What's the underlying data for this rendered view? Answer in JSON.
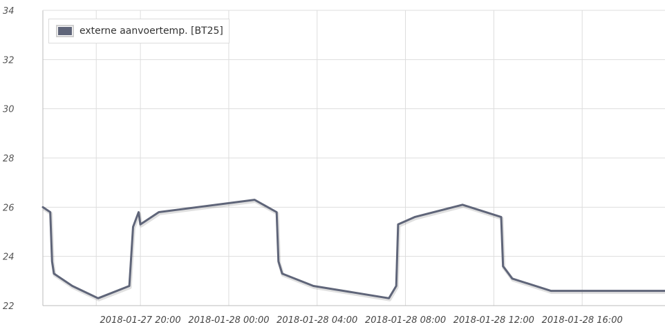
{
  "colors": {
    "series": "#5f6579",
    "grid": "#dddddd",
    "axis": "#bbbbbb"
  },
  "chart_data": {
    "type": "line",
    "title": "",
    "xlabel": "",
    "ylabel": "",
    "ylim": [
      22,
      34
    ],
    "xlim": [
      "2018-01-27 15:35",
      "2018-01-28 19:45"
    ],
    "grid": true,
    "legend_position": "top-left",
    "yticks": [
      "22",
      "24",
      "26",
      "28",
      "30",
      "32",
      "34"
    ],
    "xticks": [
      {
        "t": "2018-01-27 18:00",
        "label": ""
      },
      {
        "t": "2018-01-27 20:00",
        "label": "2018-01-27 20:00"
      },
      {
        "t": "2018-01-28 00:00",
        "label": "2018-01-28 00:00"
      },
      {
        "t": "2018-01-28 04:00",
        "label": "2018-01-28 04:00"
      },
      {
        "t": "2018-01-28 08:00",
        "label": "2018-01-28 08:00"
      },
      {
        "t": "2018-01-28 12:00",
        "label": "2018-01-28 12:00"
      },
      {
        "t": "2018-01-28 16:00",
        "label": "2018-01-28 16:00"
      }
    ],
    "series": [
      {
        "name": "externe aanvoertemp. [BT25]",
        "points": [
          [
            "2018-01-27 15:35",
            26.0
          ],
          [
            "2018-01-27 15:55",
            25.8
          ],
          [
            "2018-01-27 16:00",
            23.8
          ],
          [
            "2018-01-27 16:05",
            23.3
          ],
          [
            "2018-01-27 16:55",
            22.8
          ],
          [
            "2018-01-27 18:05",
            22.3
          ],
          [
            "2018-01-27 19:30",
            22.8
          ],
          [
            "2018-01-27 19:40",
            25.2
          ],
          [
            "2018-01-27 19:55",
            25.8
          ],
          [
            "2018-01-27 20:00",
            25.3
          ],
          [
            "2018-01-27 20:50",
            25.8
          ],
          [
            "2018-01-28 01:10",
            26.3
          ],
          [
            "2018-01-28 02:10",
            25.8
          ],
          [
            "2018-01-28 02:15",
            23.8
          ],
          [
            "2018-01-28 02:25",
            23.3
          ],
          [
            "2018-01-28 03:50",
            22.8
          ],
          [
            "2018-01-28 07:15",
            22.3
          ],
          [
            "2018-01-28 07:35",
            22.8
          ],
          [
            "2018-01-28 07:40",
            25.3
          ],
          [
            "2018-01-28 08:25",
            25.6
          ],
          [
            "2018-01-28 10:35",
            26.1
          ],
          [
            "2018-01-28 12:20",
            25.6
          ],
          [
            "2018-01-28 12:25",
            23.6
          ],
          [
            "2018-01-28 12:50",
            23.1
          ],
          [
            "2018-01-28 14:35",
            22.6
          ],
          [
            "2018-01-28 19:45",
            22.6
          ]
        ]
      }
    ]
  }
}
